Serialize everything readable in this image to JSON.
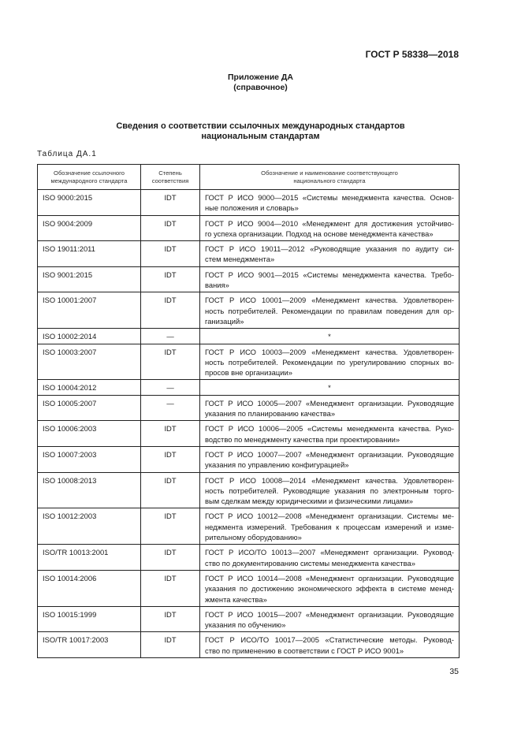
{
  "header": {
    "doc_code": "ГОСТ Р 58338—2018"
  },
  "annex": {
    "title": "Приложение ДА",
    "subtitle": "(справочное)"
  },
  "title": {
    "line1": "Сведения о соответствии ссылочных международных стандартов",
    "line2": "национальным стандартам"
  },
  "table_caption": "Таблица ДА.1",
  "table": {
    "headers": [
      [
        "Обозначение ссылочного",
        "международного стандарта"
      ],
      [
        "Степень",
        "соответствия"
      ],
      [
        "Обозначение и наименование соответствующего",
        "национального стандарта"
      ]
    ],
    "rows": [
      {
        "intl": "ISO 9000:2015",
        "degree": "IDT",
        "national": [
          "ГОСТ Р ИСО 9000—2015 «Системы менеджмента качества. Основ-",
          "ные положения и словарь»"
        ]
      },
      {
        "intl": "ISO 9004:2009",
        "degree": "IDT",
        "national": [
          "ГОСТ Р ИСО 9004—2010 «Менеджмент для достижения устойчиво-",
          "го успеха организации. Подход на основе менеджмента качества»"
        ]
      },
      {
        "intl": "ISO 19011:2011",
        "degree": "IDT",
        "national": [
          "ГОСТ Р ИСО 19011—2012 «Руководящие указания по аудиту си-",
          "стем менеджмента»"
        ]
      },
      {
        "intl": "ISO 9001:2015",
        "degree": "IDT",
        "national": [
          "ГОСТ Р ИСО 9001—2015 «Системы менеджмента качества. Требо-",
          "вания»"
        ]
      },
      {
        "intl": "ISO 10001:2007",
        "degree": "IDT",
        "national": [
          "ГОСТ Р ИСО 10001—2009 «Менеджмент качества. Удовлетворен-",
          "ность потребителей. Рекомендации по правилам поведения для ор-",
          "ганизаций»"
        ]
      },
      {
        "intl": "ISO 10002:2014",
        "degree": "—",
        "national": [
          "*"
        ]
      },
      {
        "intl": "ISO 10003:2007",
        "degree": "IDT",
        "national": [
          "ГОСТ Р ИСО 10003—2009 «Менеджмент качества. Удовлетворен-",
          "ность потребителей. Рекомендации по урегулированию спорных во-",
          "просов вне организации»"
        ]
      },
      {
        "intl": "ISO 10004:2012",
        "degree": "—",
        "national": [
          "*"
        ]
      },
      {
        "intl": "ISO 10005:2007",
        "degree": "—",
        "national": [
          "ГОСТ Р ИСО 10005—2007 «Менеджмент организации. Руководящие",
          "указания по планированию качества»"
        ]
      },
      {
        "intl": "ISO 10006:2003",
        "degree": "IDT",
        "national": [
          "ГОСТ Р ИСО 10006—2005 «Системы менеджмента качества. Руко-",
          "водство по менеджменту качества при проектировании»"
        ]
      },
      {
        "intl": "ISO 10007:2003",
        "degree": "IDT",
        "national": [
          "ГОСТ Р ИСО 10007—2007 «Менеджмент организации. Руководящие",
          "указания по управлению конфигурацией»"
        ]
      },
      {
        "intl": "ISO 10008:2013",
        "degree": "IDT",
        "national": [
          "ГОСТ Р ИСО 10008—2014 «Менеджмент качества. Удовлетворен-",
          "ность потребителей. Руководящие указания по электронным торго-",
          "вым сделкам между юридическими и физическими лицами»"
        ]
      },
      {
        "intl": "ISO 10012:2003",
        "degree": "IDT",
        "national": [
          "ГОСТ Р ИСО 10012—2008 «Менеджмент организации. Системы ме-",
          "неджмента измерений. Требования к процессам измерений и изме-",
          "рительному оборудованию»"
        ]
      },
      {
        "intl": "ISO/TR 10013:2001",
        "degree": "IDT",
        "national": [
          "ГОСТ Р ИСО/ТО 10013—2007 «Менеджмент организации. Руковод-",
          "ство по документированию системы менеджмента качества»"
        ]
      },
      {
        "intl": "ISO 10014:2006",
        "degree": "IDT",
        "national": [
          "ГОСТ Р ИСО 10014—2008 «Менеджмент организации. Руководящие",
          "указания по достижению экономического эффекта в системе менед-",
          "жмента качества»"
        ]
      },
      {
        "intl": "ISO 10015:1999",
        "degree": "IDT",
        "national": [
          "ГОСТ Р ИСО 10015—2007 «Менеджмент организации. Руководящие",
          "указания по обучению»"
        ]
      },
      {
        "intl": "ISO/TR 10017:2003",
        "degree": "IDT",
        "national": [
          "ГОСТ Р ИСО/ТО 10017—2005 «Статистические методы. Руковод-",
          "ство по применению в соответствии с ГОСТ Р ИСО 9001»"
        ]
      }
    ]
  },
  "page_number": "35"
}
